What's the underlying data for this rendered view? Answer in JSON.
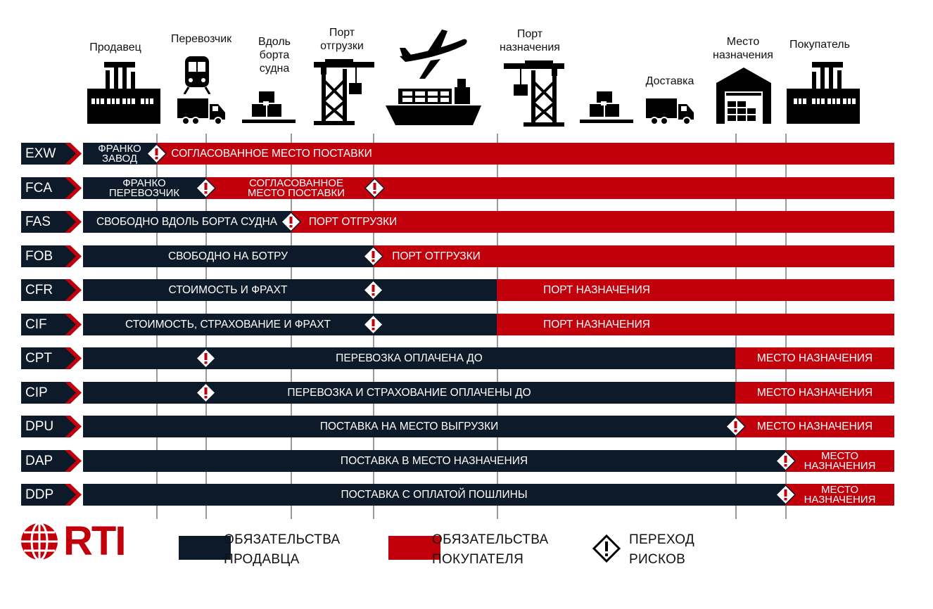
{
  "colors": {
    "seller": "#0d1a29",
    "buyer": "#c2000b",
    "chevron_accent": "#c2000b"
  },
  "header": {
    "stages": [
      {
        "label": "Продавец",
        "icon": "factory-icon"
      },
      {
        "label": "Перевозчик",
        "icon": "train-icon"
      },
      {
        "label": "Вдоль\nборта\nсудна",
        "icon": "pallet-boxes-icon"
      },
      {
        "label": "Порт\nотгрузки",
        "icon": "port-crane-icon"
      },
      {
        "label": "",
        "icon": "airplane-icon"
      },
      {
        "label": "",
        "icon": "cargo-ship-icon"
      },
      {
        "label": "Порт\nназначения",
        "icon": "port-crane-icon"
      },
      {
        "label": "",
        "icon": "pallet-boxes-icon"
      },
      {
        "label": "Доставка",
        "icon": "delivery-truck-icon"
      },
      {
        "label": "Место\nназначения",
        "icon": "warehouse-icon"
      },
      {
        "label": "Покупатель",
        "icon": "factory-icon"
      }
    ]
  },
  "terms": [
    {
      "code": "EXW",
      "seller_label": "ФРАНКО\nЗАВОД",
      "buyer_label": "СОГЛАСОВАННОЕ МЕСТО ПОСТАВКИ"
    },
    {
      "code": "FCA",
      "seller_label": "ФРАНКО\nПЕРЕВОЗЧИК",
      "buyer_label": "СОГЛАСОВАННОЕ\nМЕСТО ПОСТАВКИ"
    },
    {
      "code": "FAS",
      "seller_label": "СВОБОДНО ВДОЛЬ БОРТА СУДНА",
      "buyer_label": "ПОРТ ОТГРУЗКИ"
    },
    {
      "code": "FOB",
      "seller_label": "СВОБОДНО НА БОТРУ",
      "buyer_label": "ПОРТ ОТГРУЗКИ"
    },
    {
      "code": "CFR",
      "seller_label": "СТОИМОСТЬ И ФРАХТ",
      "buyer_label": "ПОРТ НАЗНАЧЕНИЯ"
    },
    {
      "code": "CIF",
      "seller_label": "СТОИМОСТЬ, СТРАХОВАНИЕ И ФРАХТ",
      "buyer_label": "ПОРТ НАЗНАЧЕНИЯ"
    },
    {
      "code": "CPT",
      "seller_label": "ПЕРЕВОЗКА ОПЛАЧЕНА ДО",
      "buyer_label": "МЕСТО НАЗНАЧЕНИЯ"
    },
    {
      "code": "CIP",
      "seller_label": "ПЕРЕВОЗКА И СТРАХОВАНИЕ ОПЛАЧЕНЫ ДО",
      "buyer_label": "МЕСТО НАЗНАЧЕНИЯ"
    },
    {
      "code": "DPU",
      "seller_label": "ПОСТАВКА НА МЕСТО ВЫГРУЗКИ",
      "buyer_label": "МЕСТО НАЗНАЧЕНИЯ"
    },
    {
      "code": "DAP",
      "seller_label": "ПОСТАВКА В МЕСТО НАЗНАЧЕНИЯ",
      "buyer_label": "МЕСТО\nНАЗНАЧЕНИЯ"
    },
    {
      "code": "DDP",
      "seller_label": "ПОСТАВКА С ОПЛАТОЙ ПОШЛИНЫ",
      "buyer_label": "МЕСТО\nНАЗНАЧЕНИЯ"
    }
  ],
  "legend": {
    "logo": "RTI",
    "seller": "ОБЯЗАТЕЛЬСТВА\nПРОДАВЦА",
    "buyer": "ОБЯЗАТЕЛЬСТВА\nПОКУПАТЕЛЯ",
    "risk": "ПЕРЕХОД\nРИСКОВ"
  }
}
